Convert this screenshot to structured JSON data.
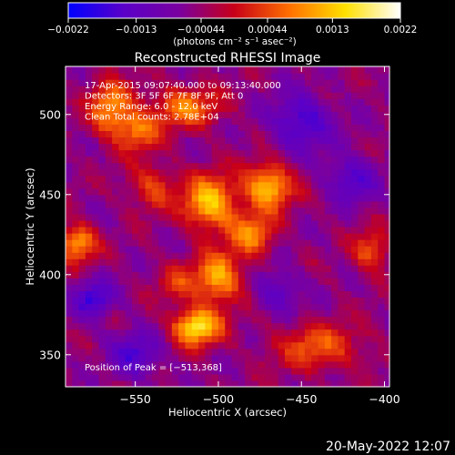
{
  "chart_data": {
    "type": "heatmap",
    "title": "Reconstructed RHESSI Image",
    "colorbar": {
      "ticks": [
        "-0.0022",
        "-0.0013",
        "-0.00044",
        "0.00044",
        "0.0013",
        "0.0022"
      ],
      "range": [
        -0.0022,
        0.0022
      ],
      "unit_label": "(photons cm⁻² s⁻¹ asec⁻²)",
      "colormap": [
        "#0000ff",
        "#5a00c8",
        "#7a00a0",
        "#c80018",
        "#ff7000",
        "#ffe000",
        "#ffffff"
      ]
    },
    "xlabel": "Heliocentric X (arcsec)",
    "ylabel": "Heliocentric Y (arcsec)",
    "xlim": [
      -592,
      -397
    ],
    "ylim": [
      330,
      530
    ],
    "xticks": [
      -550,
      -500,
      -450,
      -400
    ],
    "yticks": [
      350,
      400,
      450,
      500
    ],
    "xtick_labels": [
      "−550",
      "−500",
      "−450",
      "−400"
    ],
    "ytick_labels": [
      "350",
      "400",
      "450",
      "500"
    ],
    "info_lines": [
      "17-Apr-2015 09:07:40.000 to 09:13:40.000",
      "Detectors: 3F 5F 6F 7F 8F 9F, Att 0",
      "Energy Range: 6.0 - 12.0 keV",
      "Clean     Total counts: 2.78E+04"
    ],
    "peak_label": "Position of Peak = [−513,368]",
    "peak": [
      -513,
      368
    ],
    "sources": [
      {
        "x": -565,
        "y": 504,
        "sx": 9,
        "sy": 12,
        "value": 0.0015
      },
      {
        "x": -548,
        "y": 490,
        "sx": 9,
        "sy": 9,
        "value": 0.0012
      },
      {
        "x": -585,
        "y": 420,
        "sx": 8,
        "sy": 8,
        "value": 0.0016
      },
      {
        "x": -520,
        "y": 505,
        "sx": 14,
        "sy": 9,
        "value": 0.0013
      },
      {
        "x": -505,
        "y": 445,
        "sx": 11,
        "sy": 12,
        "value": 0.0019
      },
      {
        "x": -470,
        "y": 455,
        "sx": 10,
        "sy": 10,
        "value": 0.0019
      },
      {
        "x": -480,
        "y": 425,
        "sx": 9,
        "sy": 9,
        "value": 0.0014
      },
      {
        "x": -500,
        "y": 398,
        "sx": 10,
        "sy": 11,
        "value": 0.0017
      },
      {
        "x": -513,
        "y": 368,
        "sx": 10,
        "sy": 8,
        "value": 0.0022
      },
      {
        "x": -440,
        "y": 355,
        "sx": 18,
        "sy": 10,
        "value": 0.0011
      },
      {
        "x": -408,
        "y": 415,
        "sx": 8,
        "sy": 9,
        "value": 0.0011
      },
      {
        "x": -540,
        "y": 455,
        "sx": 10,
        "sy": 10,
        "value": 0.0009
      },
      {
        "x": -525,
        "y": 395,
        "sx": 8,
        "sy": 8,
        "value": 0.0008
      },
      {
        "x": -575,
        "y": 385,
        "sx": 8,
        "sy": 8,
        "value": -0.0012
      },
      {
        "x": -450,
        "y": 495,
        "sx": 12,
        "sy": 12,
        "value": -0.0012
      },
      {
        "x": -420,
        "y": 460,
        "sx": 10,
        "sy": 10,
        "value": -0.001
      },
      {
        "x": -550,
        "y": 350,
        "sx": 10,
        "sy": 10,
        "value": -0.001
      },
      {
        "x": -465,
        "y": 390,
        "sx": 9,
        "sy": 9,
        "value": -0.0009
      }
    ]
  },
  "timestamp": "20-May-2022 12:07"
}
